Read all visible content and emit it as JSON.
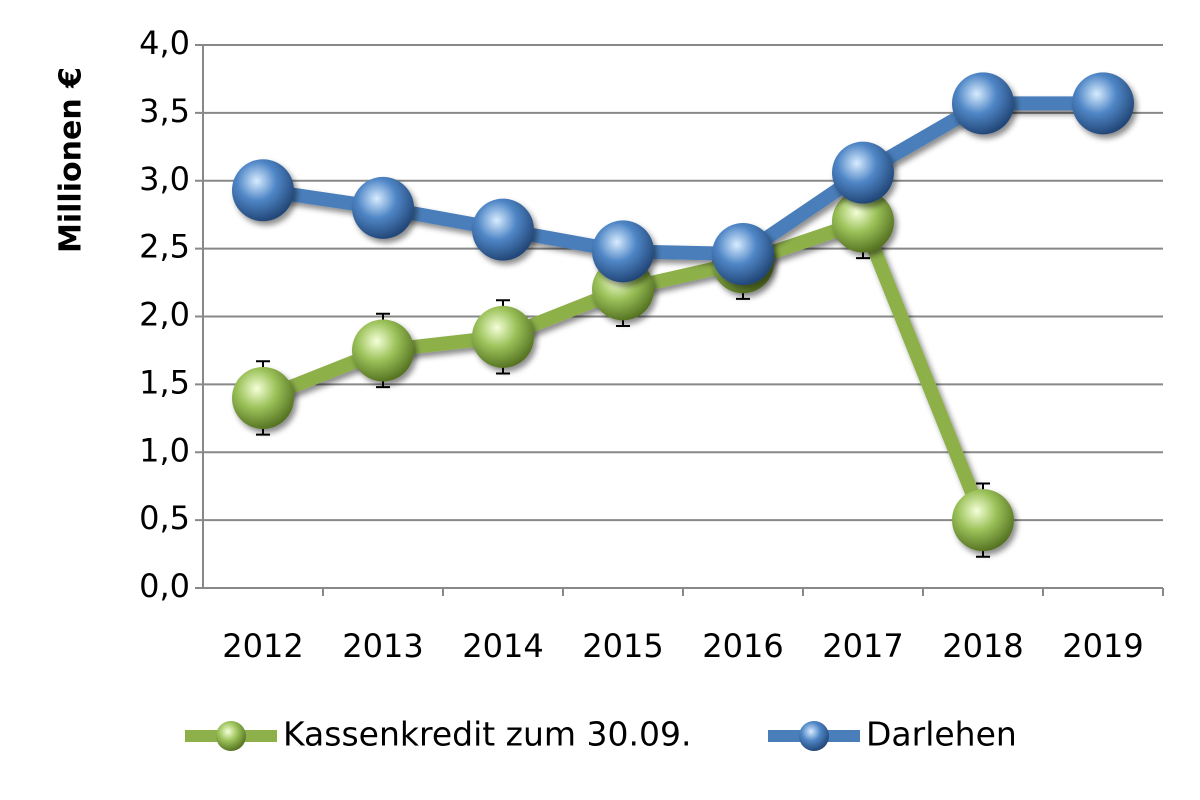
{
  "chart_data": {
    "type": "line",
    "y_label": "Millionen €",
    "categories": [
      "2012",
      "2013",
      "2014",
      "2015",
      "2016",
      "2017",
      "2018",
      "2019"
    ],
    "series": [
      {
        "name": "Kassenkredit zum 30.09.",
        "color": "#8db04a",
        "values": [
          1.4,
          1.75,
          1.85,
          2.2,
          2.4,
          2.7,
          0.5,
          null
        ],
        "errors": [
          0.27,
          0.27,
          0.27,
          0.27,
          0.27,
          0.27,
          0.27,
          null
        ]
      },
      {
        "name": "Darlehen",
        "color": "#4a7ebb",
        "values": [
          2.93,
          2.8,
          2.64,
          2.48,
          2.46,
          3.06,
          3.57,
          3.57
        ]
      }
    ],
    "ylim": [
      0,
      4
    ],
    "yticks": [
      {
        "value": 0,
        "label": "0,0"
      },
      {
        "value": 0.5,
        "label": "0,5"
      },
      {
        "value": 1,
        "label": "1,0"
      },
      {
        "value": 1.5,
        "label": "1,5"
      },
      {
        "value": 2,
        "label": "2,0"
      },
      {
        "value": 2.5,
        "label": "2,5"
      },
      {
        "value": 3,
        "label": "3,0"
      },
      {
        "value": 3.5,
        "label": "3,5"
      },
      {
        "value": 4,
        "label": "4,0"
      }
    ],
    "grid": true,
    "legend": "bottom"
  }
}
